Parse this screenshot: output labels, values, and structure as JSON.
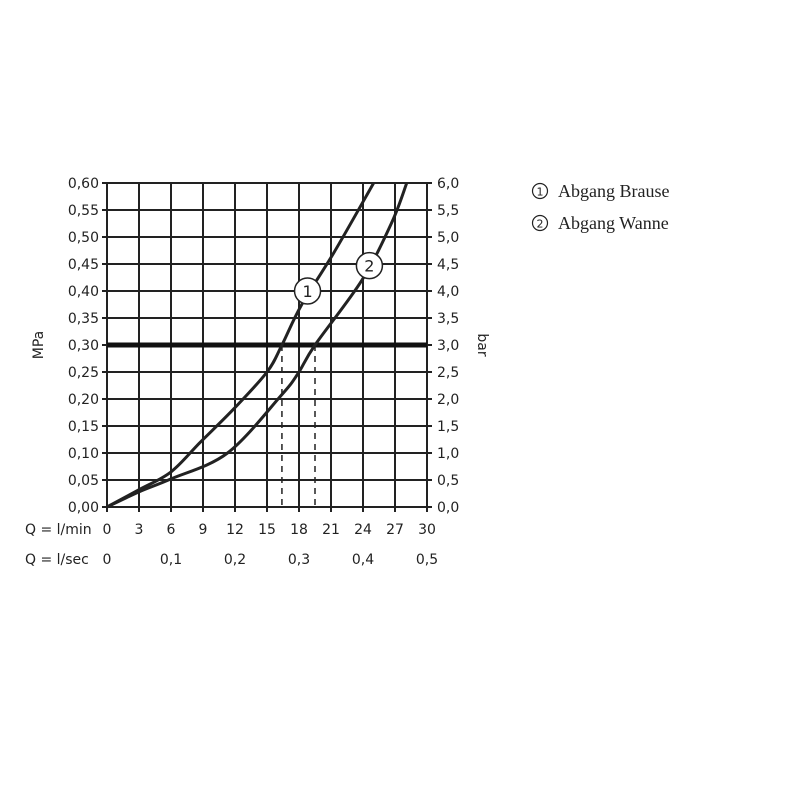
{
  "chart_data": {
    "type": "line",
    "title": "",
    "xlabel": "Q = l/min",
    "xlabel_secondary": "Q = l/sec",
    "ylabel": "MPa",
    "ylabel_secondary": "bar",
    "xlim": [
      0,
      30
    ],
    "ylim": [
      0,
      0.6
    ],
    "grid": true,
    "x_ticks": [
      "0",
      "3",
      "6",
      "9",
      "12",
      "15",
      "18",
      "21",
      "24",
      "27",
      "30"
    ],
    "x_ticks_secondary": [
      "0",
      "0,1",
      "0,2",
      "0,3",
      "0,4",
      "0,5"
    ],
    "y_ticks": [
      "0,00",
      "0,05",
      "0,10",
      "0,15",
      "0,20",
      "0,25",
      "0,30",
      "0,35",
      "0,40",
      "0,45",
      "0,50",
      "0,55",
      "0,60"
    ],
    "y_ticks_secondary": [
      "0,0",
      "0,5",
      "1,0",
      "1,5",
      "2,0",
      "2,5",
      "3,0",
      "3,5",
      "4,0",
      "4,5",
      "5,0",
      "5,5",
      "6,0"
    ],
    "reference_line": {
      "y": 0.3
    },
    "series": [
      {
        "name": "Abgang Brause",
        "marker": "1",
        "x": [
          0,
          3,
          6,
          8.75,
          11.9,
          15.0,
          16.4,
          18.2,
          21.3,
          25.0
        ],
        "y": [
          0,
          0.032,
          0.065,
          0.12,
          0.182,
          0.25,
          0.3,
          0.373,
          0.472,
          0.6
        ],
        "label_at": [
          18.8,
          0.4
        ],
        "flow_at_reference": 16.4
      },
      {
        "name": "Abgang Wanne",
        "marker": "2",
        "x": [
          0,
          3,
          6,
          11.3,
          16.3,
          17.9,
          19.5,
          23.9,
          26.7,
          28.1
        ],
        "y": [
          0,
          0.028,
          0.052,
          0.1,
          0.206,
          0.247,
          0.3,
          0.42,
          0.527,
          0.6
        ],
        "label_at": [
          24.6,
          0.447
        ],
        "flow_at_reference": 19.5
      }
    ],
    "legend": {
      "placement": "right",
      "entries": [
        {
          "marker": "1",
          "label": "Abgang Brause"
        },
        {
          "marker": "2",
          "label": "Abgang Wanne"
        }
      ]
    },
    "colors": {
      "line": "#222222",
      "grid": "#222222"
    }
  }
}
